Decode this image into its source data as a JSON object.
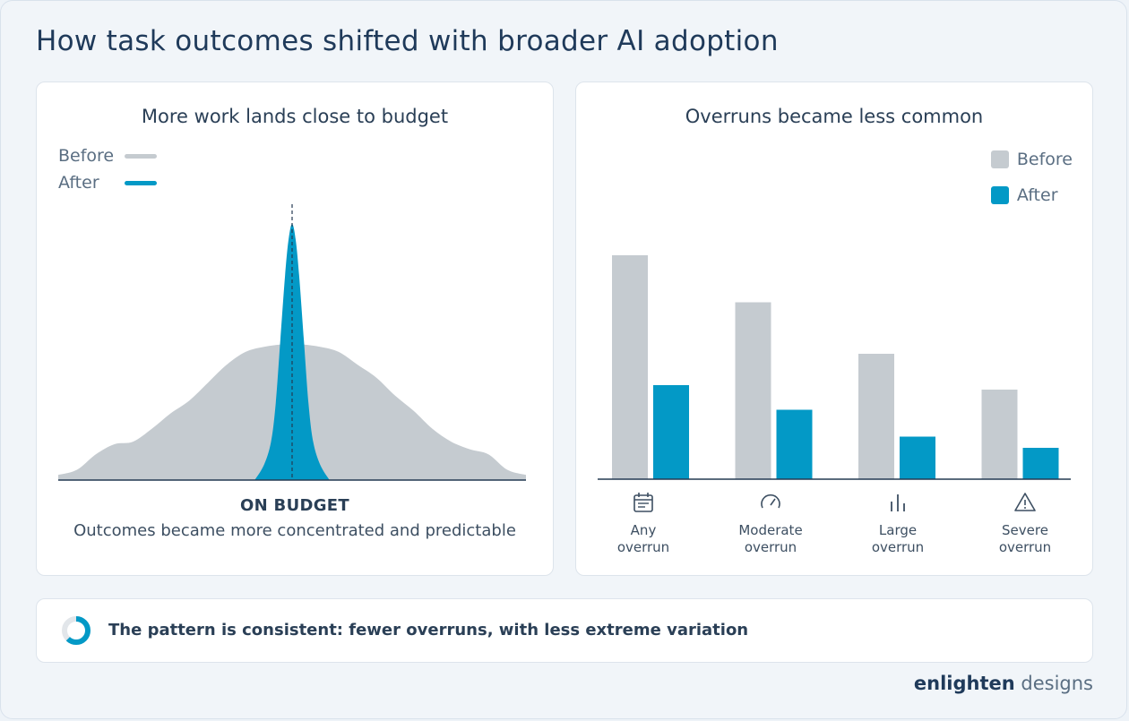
{
  "title": "How task outcomes shifted with broader AI adoption",
  "colors": {
    "before": "#c5cbd0",
    "after": "#0399c6",
    "text": "#243a52"
  },
  "left_panel": {
    "title": "More work lands close to budget",
    "legend": [
      {
        "label": "Before",
        "color": "#c5cbd0"
      },
      {
        "label": "After",
        "color": "#0399c6"
      }
    ],
    "center_label": "ON BUDGET",
    "caption": "Outcomes became more concentrated and predictable"
  },
  "right_panel": {
    "title": "Overruns became less common",
    "legend": [
      {
        "label": "Before",
        "color": "#c5cbd0"
      },
      {
        "label": "After",
        "color": "#0399c6"
      }
    ],
    "categories": [
      {
        "line1": "Any",
        "line2": "overrun",
        "icon": "calendar-icon"
      },
      {
        "line1": "Moderate",
        "line2": "overrun",
        "icon": "gauge-icon"
      },
      {
        "line1": "Large",
        "line2": "overrun",
        "icon": "bar-chart-icon"
      },
      {
        "line1": "Severe",
        "line2": "overrun",
        "icon": "warning-icon"
      }
    ]
  },
  "footer": {
    "text": "The pattern is consistent: fewer overruns, with less extreme variation",
    "donut_fraction": 0.62
  },
  "brand": {
    "part1": "enlighten",
    "part2": " designs"
  },
  "chart_data": [
    {
      "type": "area",
      "title": "More work lands close to budget",
      "series": [
        {
          "name": "Before",
          "x": [
            -1.0,
            -0.92,
            -0.84,
            -0.76,
            -0.68,
            -0.6,
            -0.52,
            -0.44,
            -0.36,
            -0.28,
            -0.2,
            -0.12,
            -0.04,
            0.0,
            0.04,
            0.12,
            0.2,
            0.28,
            0.36,
            0.44,
            0.52,
            0.6,
            0.68,
            0.76,
            0.84,
            0.92,
            1.0
          ],
          "values": [
            0.02,
            0.04,
            0.1,
            0.14,
            0.15,
            0.2,
            0.26,
            0.31,
            0.38,
            0.45,
            0.5,
            0.52,
            0.53,
            0.53,
            0.53,
            0.52,
            0.5,
            0.45,
            0.4,
            0.33,
            0.27,
            0.2,
            0.15,
            0.12,
            0.1,
            0.04,
            0.02
          ]
        },
        {
          "name": "After",
          "x": [
            -0.16,
            -0.12,
            -0.09,
            -0.07,
            -0.05,
            -0.03,
            -0.015,
            0.0,
            0.015,
            0.03,
            0.05,
            0.07,
            0.09,
            0.12,
            0.16
          ],
          "values": [
            0.0,
            0.06,
            0.15,
            0.3,
            0.55,
            0.8,
            0.94,
            1.0,
            0.94,
            0.8,
            0.55,
            0.3,
            0.15,
            0.06,
            0.0
          ]
        }
      ],
      "annotations": [
        "ON BUDGET"
      ]
    },
    {
      "type": "bar",
      "title": "Overruns became less common",
      "categories": [
        "Any overrun",
        "Moderate overrun",
        "Large overrun",
        "Severe overrun"
      ],
      "series": [
        {
          "name": "Before",
          "values": [
            100,
            79,
            56,
            40
          ]
        },
        {
          "name": "After",
          "values": [
            42,
            31,
            19,
            14
          ]
        }
      ],
      "ylim": [
        0,
        100
      ],
      "legend": "top-right",
      "grid": false
    }
  ]
}
